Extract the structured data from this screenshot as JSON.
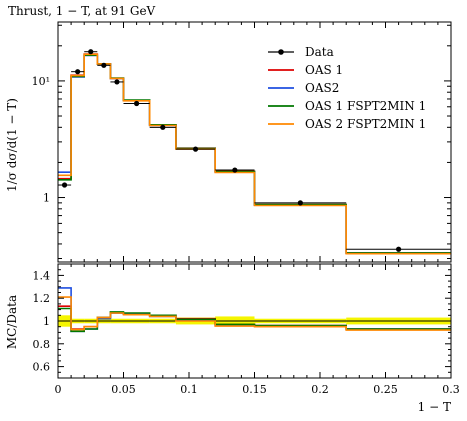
{
  "chart_data": {
    "type": "line",
    "title": "Thrust, 1 − T, at 91 GeV",
    "xlabel": "1 − T",
    "ylabel": "1/σ dσ/d(1 − T)",
    "ratio_ylabel": "MC/Data",
    "xlim": [
      0,
      0.3
    ],
    "ylim": [
      0.28,
      32
    ],
    "yscale": "log",
    "ratio_ylim": [
      0.5,
      1.5
    ],
    "x_ticks": [
      "0",
      "0.05",
      "0.1",
      "0.15",
      "0.2",
      "0.25",
      "0.3"
    ],
    "y_ticks": [
      "1",
      "10¹"
    ],
    "ratio_ticks": [
      "0.6",
      "0.8",
      "1",
      "1.2",
      "1.4"
    ],
    "legend_position": "top-right",
    "bin_edges": [
      0,
      0.01,
      0.02,
      0.03,
      0.04,
      0.05,
      0.07,
      0.09,
      0.12,
      0.15,
      0.22,
      0.3
    ],
    "data": {
      "name": "Data",
      "color": "#000000",
      "x": [
        0.005,
        0.015,
        0.025,
        0.035,
        0.045,
        0.06,
        0.08,
        0.105,
        0.135,
        0.185,
        0.26
      ],
      "y": [
        1.28,
        12.0,
        17.8,
        13.6,
        9.8,
        6.4,
        4.0,
        2.6,
        1.72,
        0.9,
        0.36
      ]
    },
    "series": [
      {
        "name": "OAS 1",
        "color": "#dd0000",
        "values": [
          1.45,
          11.2,
          17.0,
          14.0,
          10.5,
          6.8,
          4.2,
          2.65,
          1.68,
          0.87,
          0.335
        ],
        "ratio": [
          1.13,
          0.93,
          0.95,
          1.03,
          1.07,
          1.06,
          1.05,
          1.02,
          0.97,
          0.96,
          0.93
        ]
      },
      {
        "name": "OAS2",
        "color": "#1f4fe0",
        "values": [
          1.65,
          10.8,
          16.5,
          13.9,
          10.5,
          6.8,
          4.15,
          2.62,
          1.66,
          0.86,
          0.335
        ],
        "ratio": [
          1.29,
          0.91,
          0.93,
          1.02,
          1.07,
          1.06,
          1.04,
          1.01,
          0.96,
          0.955,
          0.93
        ]
      },
      {
        "name": "OAS 1 FSPT2MIN 1",
        "color": "#007700",
        "values": [
          1.42,
          10.9,
          16.6,
          14.0,
          10.6,
          6.85,
          4.2,
          2.64,
          1.67,
          0.87,
          0.335
        ],
        "ratio": [
          1.11,
          0.91,
          0.93,
          1.03,
          1.08,
          1.07,
          1.05,
          1.015,
          0.97,
          0.96,
          0.93
        ]
      },
      {
        "name": "OAS 2 FSPT2MIN 1",
        "color": "#ff8800",
        "values": [
          1.55,
          11.1,
          16.9,
          14.0,
          10.5,
          6.75,
          4.15,
          2.6,
          1.64,
          0.855,
          0.33
        ],
        "ratio": [
          1.21,
          0.925,
          0.95,
          1.03,
          1.07,
          1.055,
          1.04,
          1.0,
          0.955,
          0.95,
          0.92
        ]
      }
    ],
    "data_uncertainty": [
      0.05,
      0.02,
      0.02,
      0.02,
      0.02,
      0.02,
      0.02,
      0.03,
      0.04,
      0.02,
      0.03
    ]
  }
}
